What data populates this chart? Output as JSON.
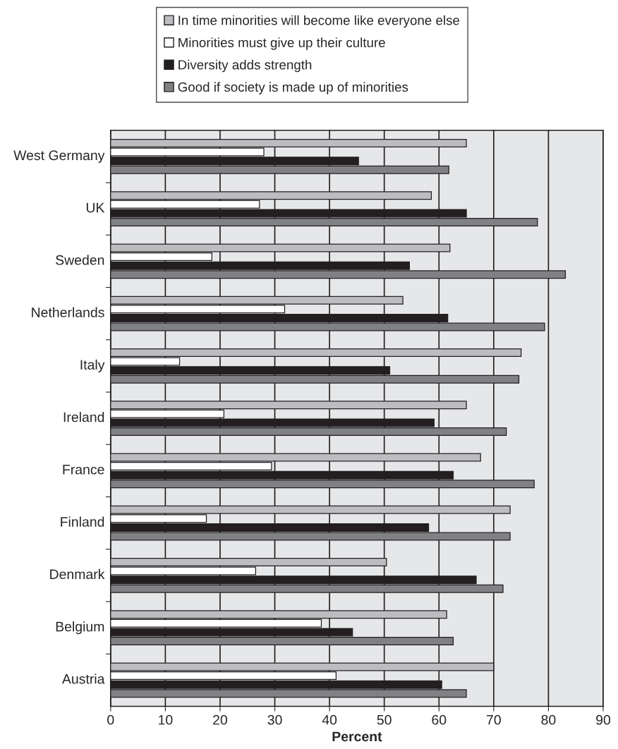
{
  "chart_data": {
    "type": "bar",
    "orientation": "horizontal",
    "xlabel": "Percent",
    "categories": [
      "West Germany",
      "UK",
      "Sweden",
      "Netherlands",
      "Italy",
      "Ireland",
      "France",
      "Finland",
      "Denmark",
      "Belgium",
      "Austria"
    ],
    "series": [
      {
        "name": "In time minorities will become like everyone else",
        "color": "#bcbdc0",
        "values": [
          65,
          58.6,
          62,
          53.4,
          75,
          65,
          67.6,
          73,
          50.4,
          61.4,
          70
        ]
      },
      {
        "name": "Minorities must give up their culture",
        "color": "#ffffff",
        "values": [
          28,
          27.2,
          18.5,
          31.8,
          12.6,
          20.7,
          29.4,
          17.5,
          26.5,
          38.5,
          41.2
        ]
      },
      {
        "name": "Diversity adds strength",
        "color": "#231f20",
        "values": [
          45.3,
          65,
          54.6,
          61.6,
          51,
          59.1,
          62.6,
          58.1,
          66.8,
          44.2,
          60.5
        ]
      },
      {
        "name": "Good if society is made up of minorities",
        "color": "#808184",
        "values": [
          61.8,
          78,
          83.1,
          79.3,
          74.6,
          72.3,
          77.4,
          73,
          71.7,
          62.6,
          65
        ]
      }
    ],
    "xlim": [
      0,
      90
    ],
    "xticks": [
      0,
      10,
      20,
      30,
      40,
      50,
      60,
      70,
      80,
      90
    ],
    "grid": "x",
    "legend": "top"
  }
}
